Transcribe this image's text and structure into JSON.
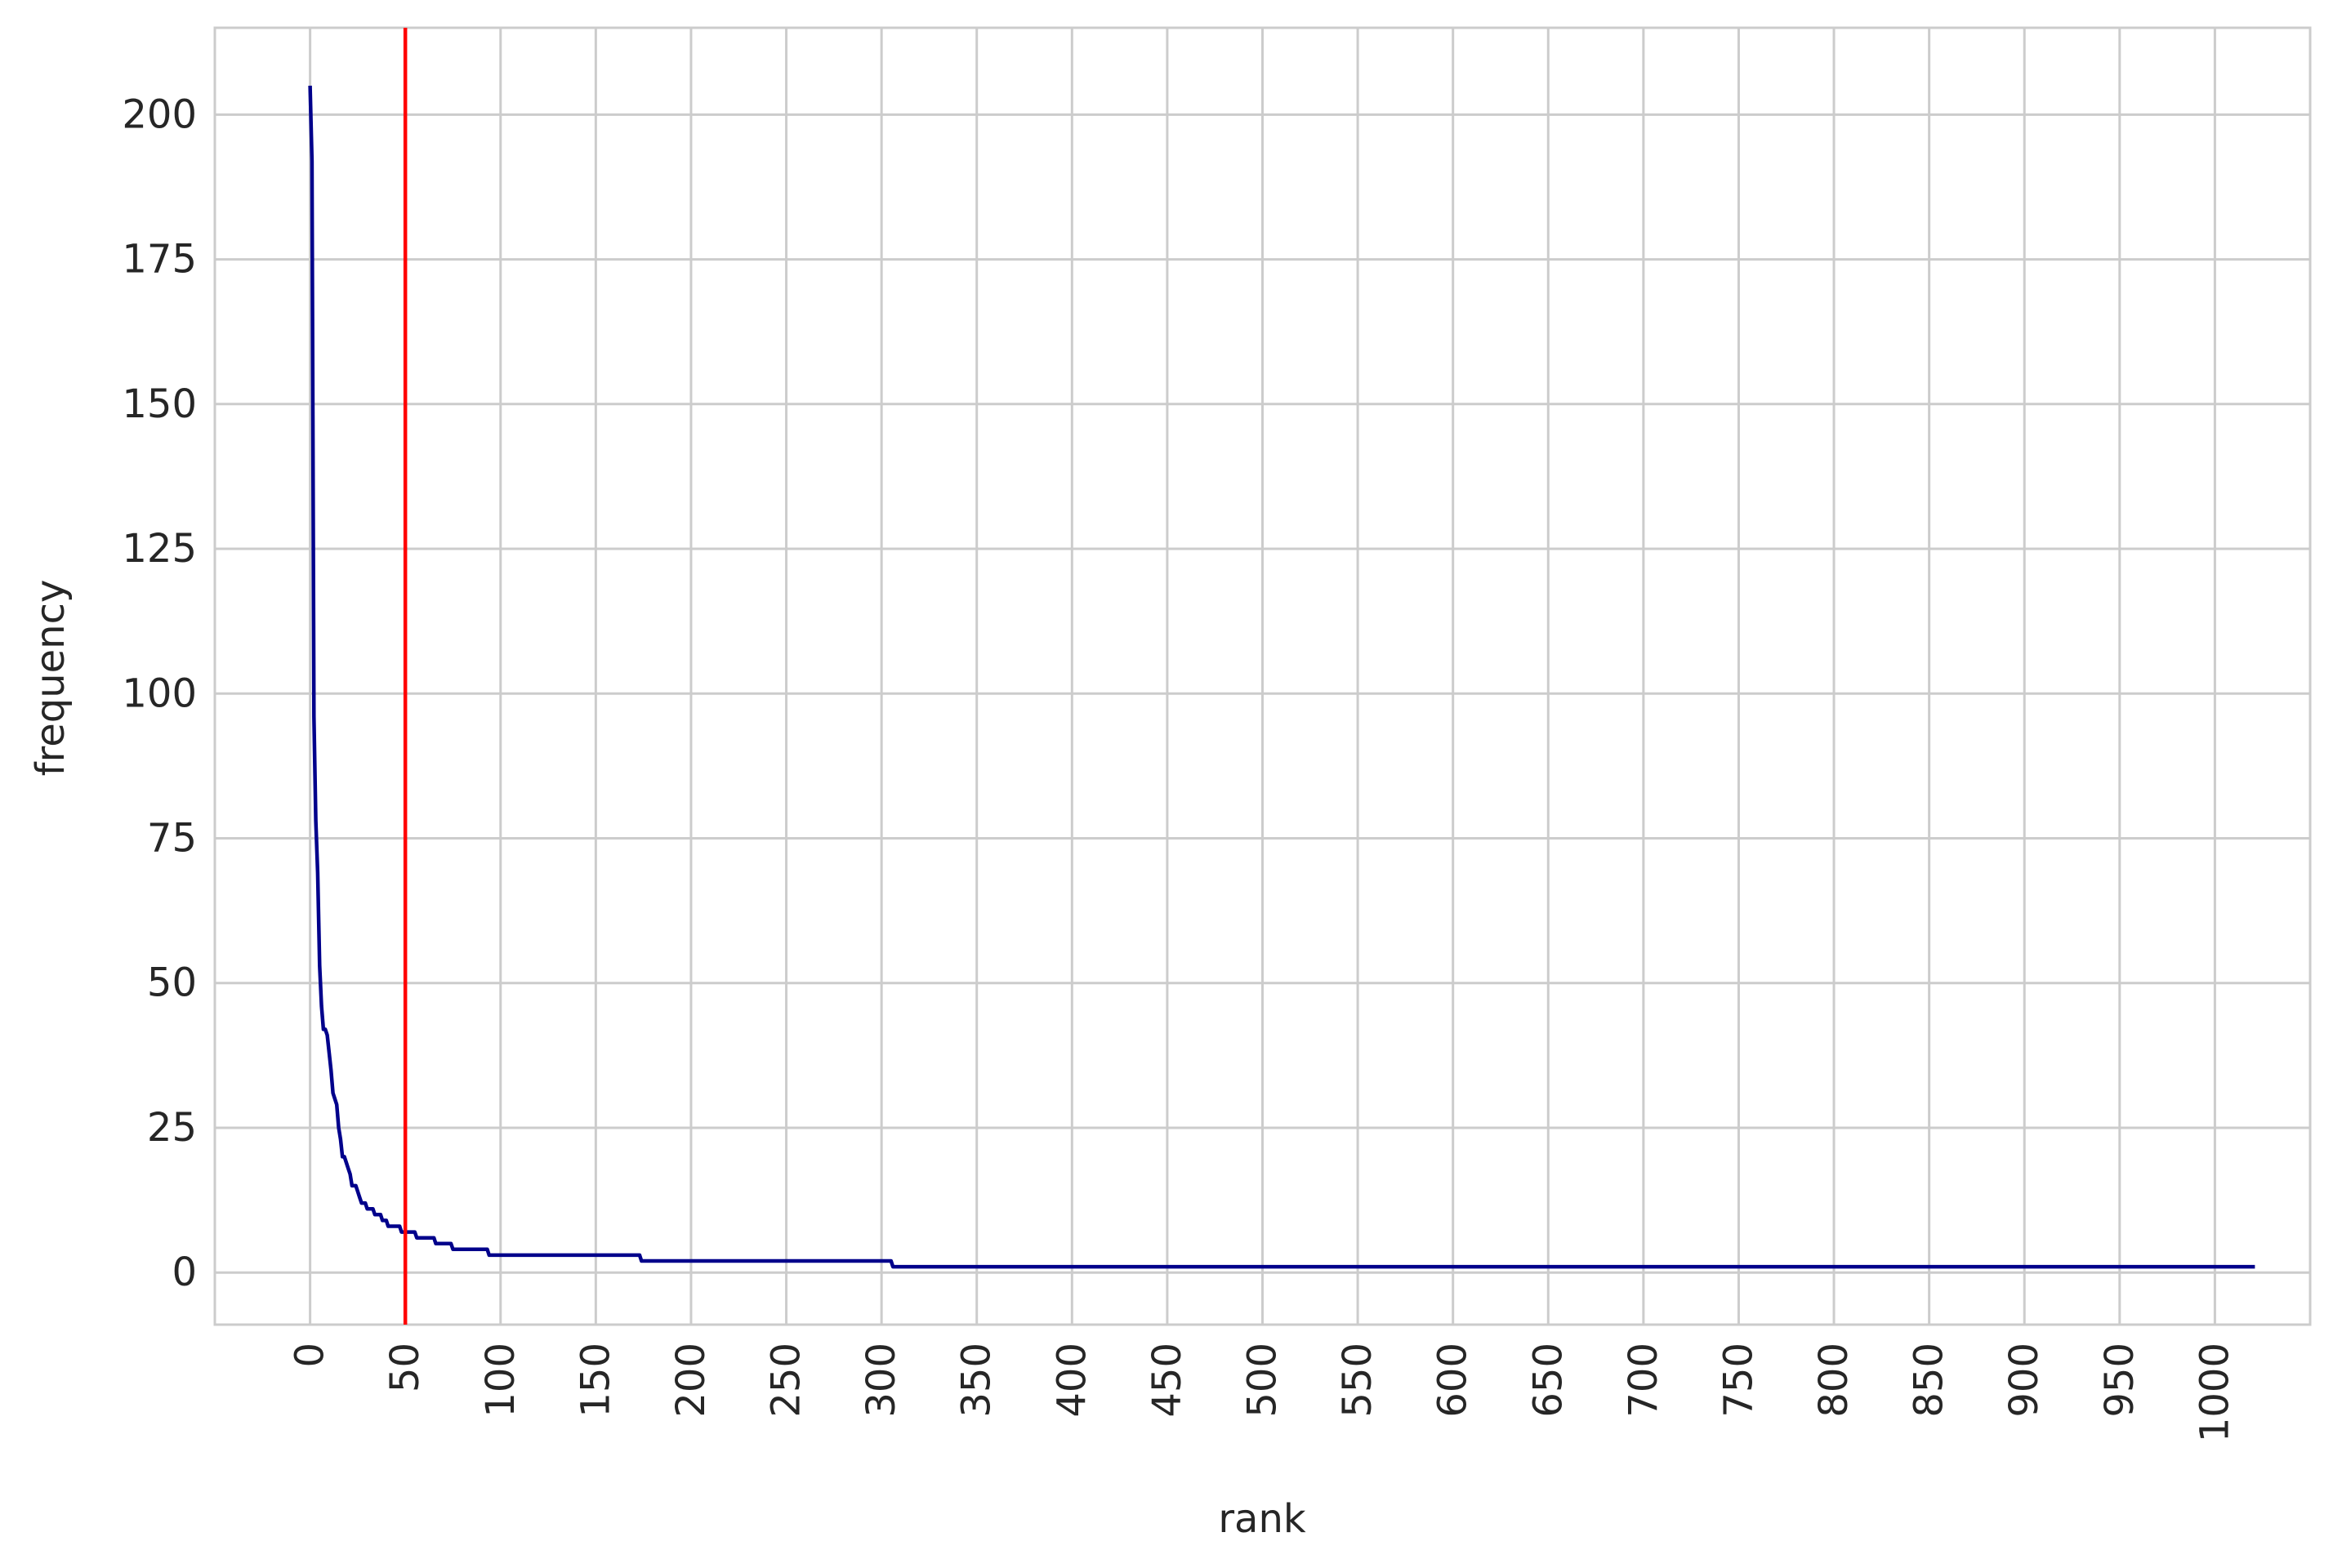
{
  "chart_data": {
    "type": "line",
    "xlabel": "rank",
    "ylabel": "frequency",
    "xlim": [
      -50,
      1050
    ],
    "ylim": [
      -9,
      215
    ],
    "x_ticks": [
      0,
      50,
      100,
      150,
      200,
      250,
      300,
      350,
      400,
      450,
      500,
      550,
      600,
      650,
      700,
      750,
      800,
      850,
      900,
      950,
      1000
    ],
    "y_ticks": [
      0,
      25,
      50,
      75,
      100,
      125,
      150,
      175,
      200
    ],
    "grid": true,
    "legend": "none",
    "colors": {
      "series": "#00008b",
      "marker": "#ff0000",
      "grid": "#cccccc"
    },
    "vertical_line": {
      "x": 50
    },
    "series": [
      {
        "color": "#00008b",
        "points": [
          [
            0,
            205
          ],
          [
            1,
            192
          ],
          [
            2,
            96
          ],
          [
            3,
            78
          ],
          [
            4,
            69
          ],
          [
            5,
            53
          ],
          [
            6,
            46
          ],
          [
            7,
            42
          ],
          [
            8,
            42
          ],
          [
            9,
            41
          ],
          [
            10,
            38
          ],
          [
            11,
            35
          ],
          [
            12,
            31
          ],
          [
            13,
            30
          ],
          [
            14,
            29
          ],
          [
            15,
            25
          ],
          [
            16,
            23
          ],
          [
            17,
            20
          ],
          [
            18,
            20
          ],
          [
            19,
            19
          ],
          [
            20,
            18
          ],
          [
            21,
            17
          ],
          [
            22,
            15
          ],
          [
            23,
            15
          ],
          [
            24,
            15
          ],
          [
            25,
            14
          ],
          [
            26,
            13
          ],
          [
            27,
            12
          ],
          [
            28,
            12
          ],
          [
            29,
            12
          ],
          [
            30,
            11
          ],
          [
            33,
            11
          ],
          [
            34,
            10
          ],
          [
            37,
            10
          ],
          [
            38,
            9
          ],
          [
            40,
            9
          ],
          [
            41,
            8
          ],
          [
            47,
            8
          ],
          [
            48,
            7
          ],
          [
            55,
            7
          ],
          [
            56,
            6
          ],
          [
            65,
            6
          ],
          [
            66,
            5
          ],
          [
            74,
            5
          ],
          [
            75,
            4
          ],
          [
            93,
            4
          ],
          [
            94,
            3
          ],
          [
            173,
            3
          ],
          [
            174,
            2
          ],
          [
            305,
            2
          ],
          [
            306,
            1
          ],
          [
            1021,
            1
          ]
        ]
      }
    ]
  }
}
